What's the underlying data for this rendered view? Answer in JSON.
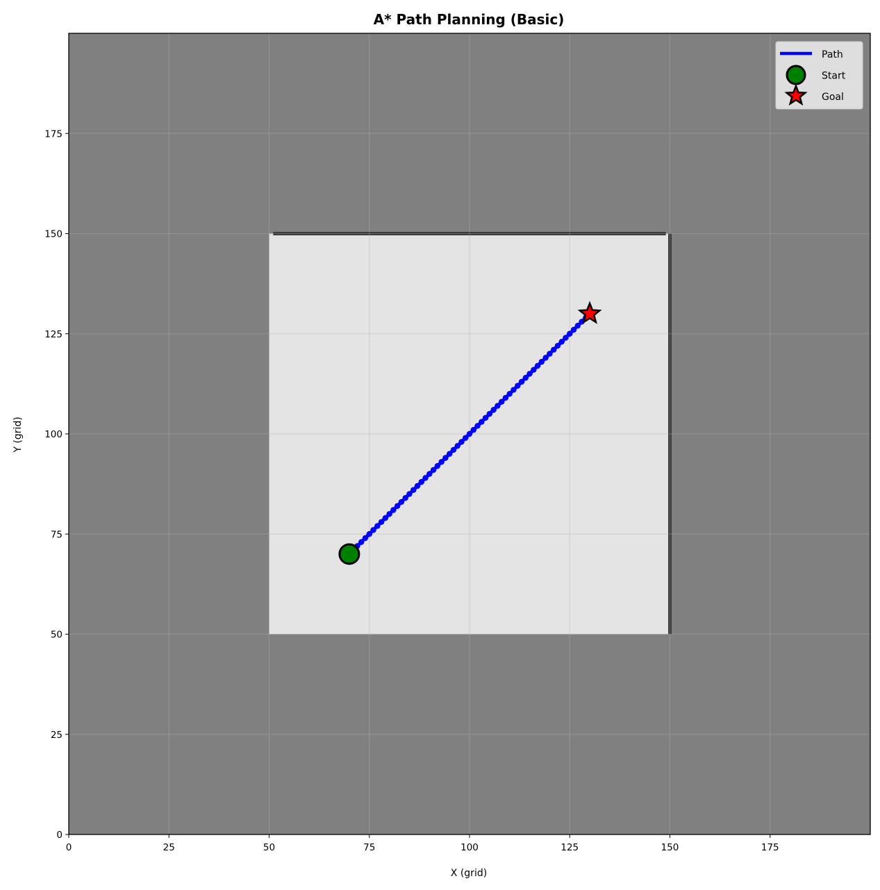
{
  "chart_data": {
    "type": "line",
    "title": "A* Path Planning (Basic)",
    "xlabel": "X (grid)",
    "ylabel": "Y (grid)",
    "xlim": [
      0,
      200
    ],
    "ylim": [
      0,
      200
    ],
    "xticks": [
      0,
      25,
      50,
      75,
      100,
      125,
      150,
      175
    ],
    "yticks": [
      0,
      25,
      50,
      75,
      100,
      125,
      150,
      175
    ],
    "grid": true,
    "legend_position": "top-right",
    "background_color": "#808080",
    "free_region": {
      "x0": 50,
      "x1": 150,
      "y0": 50,
      "y1": 150,
      "color": "#e4e4e4"
    },
    "walls": [
      {
        "from": [
          51,
          150
        ],
        "to": [
          149,
          150
        ]
      },
      {
        "from": [
          150,
          50
        ],
        "to": [
          150,
          150
        ]
      }
    ],
    "series": [
      {
        "name": "Path",
        "color": "#0000ff",
        "from": [
          70,
          70
        ],
        "to": [
          130,
          130
        ],
        "step": 1
      }
    ],
    "markers": [
      {
        "name": "Start",
        "shape": "circle",
        "color": "#008000",
        "x": 70,
        "y": 70
      },
      {
        "name": "Goal",
        "shape": "star",
        "color": "#ff0000",
        "x": 130,
        "y": 130
      }
    ],
    "legend": [
      "Path",
      "Start",
      "Goal"
    ]
  }
}
